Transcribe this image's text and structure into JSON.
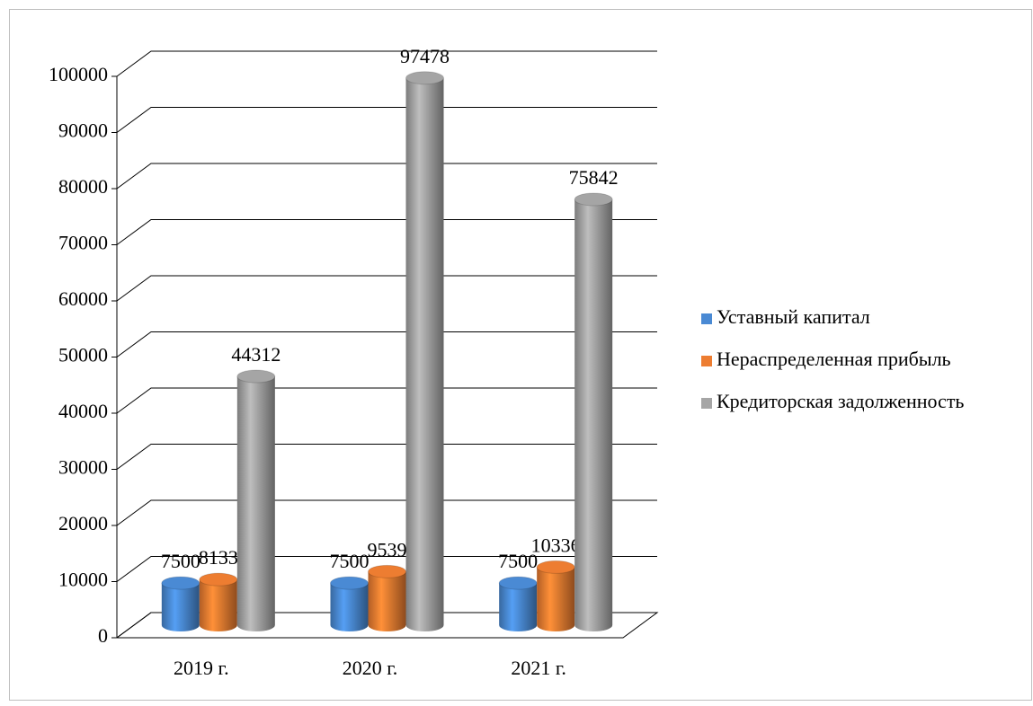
{
  "chart_data": {
    "type": "bar3d",
    "categories": [
      "2019 г.",
      "2020 г.",
      "2021 г."
    ],
    "series": [
      {
        "name": "Уставный капитал",
        "color": "#4a8ad4",
        "values": [
          7500,
          7500,
          7500
        ]
      },
      {
        "name": "Нераспределенная прибыль",
        "color": "#ed7d31",
        "values": [
          8133,
          9539,
          10336
        ]
      },
      {
        "name": "Кредиторская задолженность",
        "color": "#a5a5a5",
        "values": [
          44312,
          97478,
          75842
        ]
      }
    ],
    "ylim": [
      0,
      100000
    ],
    "yticks": [
      0,
      10000,
      20000,
      30000,
      40000,
      50000,
      60000,
      70000,
      80000,
      90000,
      100000
    ],
    "grid": true,
    "legend": "right"
  }
}
